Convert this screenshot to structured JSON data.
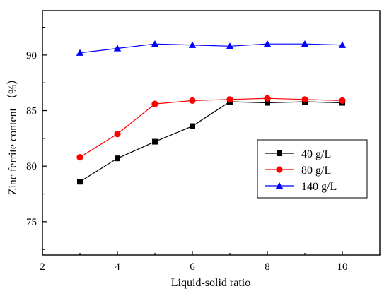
{
  "chart_data": {
    "type": "line",
    "xlabel": "Liquid-solid ratio",
    "ylabel": "Zinc ferrite content （%）",
    "xlim": [
      2,
      11
    ],
    "ylim": [
      72,
      94
    ],
    "xticks": [
      2,
      4,
      6,
      8,
      10
    ],
    "yticks": [
      75,
      80,
      85,
      90
    ],
    "grid": false,
    "legend_position": "lower-right",
    "series": [
      {
        "name": "40 g/L",
        "color": "#000000",
        "marker": "square",
        "x": [
          3,
          4,
          5,
          6,
          7,
          8,
          9,
          10
        ],
        "values": [
          78.6,
          80.7,
          82.2,
          83.6,
          85.8,
          85.7,
          85.8,
          85.7
        ]
      },
      {
        "name": "80 g/L",
        "color": "#ff0000",
        "marker": "circle",
        "x": [
          3,
          4,
          5,
          6,
          7,
          8,
          9,
          10
        ],
        "values": [
          80.8,
          82.9,
          85.6,
          85.9,
          86.0,
          86.1,
          86.0,
          85.9
        ]
      },
      {
        "name": "140 g/L",
        "color": "#0000ff",
        "marker": "triangle",
        "x": [
          3,
          4,
          5,
          6,
          7,
          8,
          9,
          10
        ],
        "values": [
          90.2,
          90.6,
          91.0,
          90.9,
          90.8,
          91.0,
          91.0,
          90.9
        ]
      }
    ]
  }
}
